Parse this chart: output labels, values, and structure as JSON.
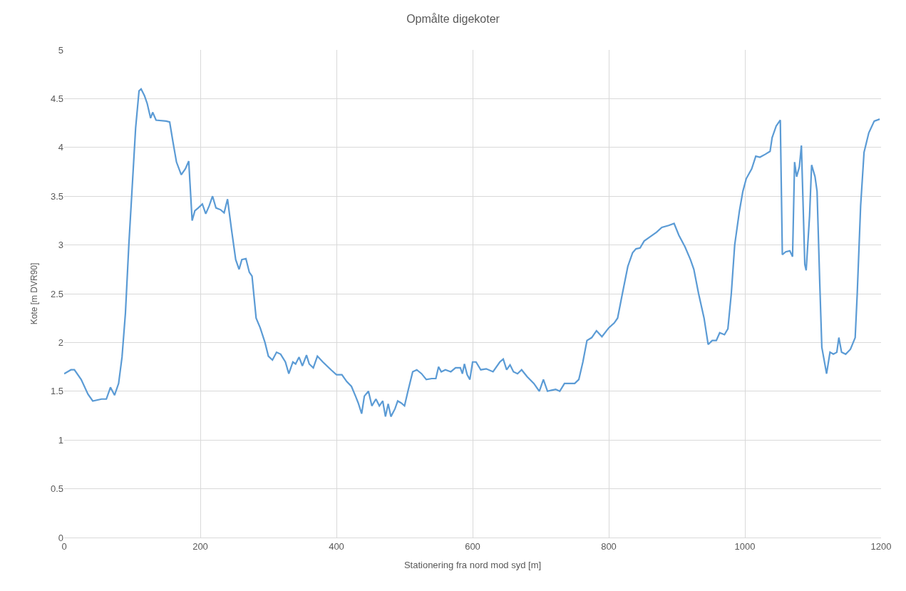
{
  "chart_data": {
    "type": "line",
    "title": "Opmålte digekoter",
    "xlabel": "Stationering fra nord mod syd [m]",
    "ylabel": "Kote [m DVR90]",
    "xlim": [
      0,
      1200
    ],
    "xticks": [
      0,
      200,
      400,
      600,
      800,
      1000,
      1200
    ],
    "ylim": [
      0,
      5
    ],
    "yticks": [
      0,
      0.5,
      1,
      1.5,
      2,
      2.5,
      3,
      3.5,
      4,
      4.5,
      5
    ],
    "grid": true,
    "marker": "none",
    "line_style": "solid",
    "series": [
      {
        "color": "#5b9bd5",
        "x": [
          0,
          10,
          15,
          25,
          35,
          42,
          55,
          62,
          68,
          74,
          80,
          85,
          90,
          95,
          100,
          105,
          110,
          113,
          118,
          122,
          127,
          130,
          135,
          150,
          155,
          160,
          165,
          172,
          178,
          183,
          188,
          192,
          197,
          203,
          208,
          213,
          218,
          223,
          230,
          235,
          240,
          246,
          252,
          257,
          261,
          267,
          272,
          276,
          282,
          288,
          295,
          300,
          306,
          312,
          318,
          325,
          330,
          336,
          340,
          345,
          350,
          356,
          360,
          366,
          372,
          380,
          392,
          400,
          408,
          415,
          422,
          428,
          432,
          437,
          441,
          447,
          452,
          458,
          463,
          468,
          472,
          476,
          480,
          486,
          490,
          495,
          500,
          505,
          512,
          518,
          525,
          532,
          540,
          546,
          550,
          554,
          560,
          568,
          575,
          582,
          585,
          588,
          592,
          596,
          600,
          605,
          612,
          620,
          630,
          640,
          645,
          650,
          655,
          660,
          666,
          672,
          680,
          690,
          698,
          704,
          710,
          716,
          722,
          728,
          735,
          742,
          750,
          756,
          762,
          768,
          775,
          782,
          790,
          800,
          808,
          813,
          820,
          828,
          835,
          840,
          846,
          852,
          860,
          870,
          878,
          888,
          896,
          903,
          912,
          920,
          925,
          932,
          940,
          946,
          952,
          958,
          963,
          970,
          975,
          980,
          985,
          992,
          997,
          1002,
          1010,
          1016,
          1022,
          1030,
          1037,
          1040,
          1046,
          1052,
          1055,
          1060,
          1066,
          1070,
          1073,
          1076,
          1080,
          1083,
          1088,
          1090,
          1095,
          1098,
          1103,
          1106,
          1110,
          1113,
          1120,
          1125,
          1130,
          1135,
          1138,
          1142,
          1148,
          1155,
          1162,
          1165,
          1170,
          1175,
          1182,
          1190,
          1198
        ],
        "values": [
          1.68,
          1.72,
          1.72,
          1.62,
          1.47,
          1.4,
          1.42,
          1.42,
          1.54,
          1.46,
          1.58,
          1.85,
          2.3,
          3.0,
          3.6,
          4.2,
          4.58,
          4.6,
          4.53,
          4.45,
          4.3,
          4.36,
          4.28,
          4.27,
          4.26,
          4.05,
          3.85,
          3.72,
          3.78,
          3.86,
          3.25,
          3.35,
          3.38,
          3.42,
          3.32,
          3.4,
          3.5,
          3.38,
          3.36,
          3.33,
          3.47,
          3.15,
          2.85,
          2.75,
          2.85,
          2.86,
          2.72,
          2.68,
          2.25,
          2.15,
          2.0,
          1.86,
          1.82,
          1.9,
          1.88,
          1.8,
          1.68,
          1.8,
          1.78,
          1.85,
          1.76,
          1.87,
          1.78,
          1.74,
          1.86,
          1.8,
          1.72,
          1.67,
          1.67,
          1.6,
          1.55,
          1.45,
          1.38,
          1.27,
          1.45,
          1.5,
          1.35,
          1.42,
          1.35,
          1.4,
          1.24,
          1.37,
          1.24,
          1.32,
          1.4,
          1.38,
          1.35,
          1.5,
          1.7,
          1.72,
          1.68,
          1.62,
          1.63,
          1.63,
          1.75,
          1.7,
          1.72,
          1.7,
          1.74,
          1.74,
          1.68,
          1.78,
          1.67,
          1.62,
          1.8,
          1.8,
          1.72,
          1.73,
          1.7,
          1.8,
          1.83,
          1.72,
          1.77,
          1.7,
          1.68,
          1.72,
          1.65,
          1.58,
          1.5,
          1.62,
          1.5,
          1.51,
          1.52,
          1.5,
          1.58,
          1.58,
          1.58,
          1.62,
          1.8,
          2.02,
          2.05,
          2.12,
          2.06,
          2.15,
          2.2,
          2.25,
          2.5,
          2.78,
          2.92,
          2.96,
          2.97,
          3.04,
          3.08,
          3.13,
          3.18,
          3.2,
          3.22,
          3.1,
          2.98,
          2.85,
          2.75,
          2.5,
          2.25,
          1.98,
          2.02,
          2.02,
          2.1,
          2.08,
          2.14,
          2.5,
          3.0,
          3.35,
          3.55,
          3.68,
          3.78,
          3.91,
          3.9,
          3.93,
          3.96,
          4.1,
          4.22,
          4.28,
          2.9,
          2.93,
          2.94,
          2.88,
          3.85,
          3.7,
          3.8,
          4.02,
          2.8,
          2.74,
          3.3,
          3.82,
          3.7,
          3.55,
          2.6,
          1.95,
          1.68,
          1.9,
          1.88,
          1.9,
          2.05,
          1.9,
          1.88,
          1.93,
          2.05,
          2.5,
          3.4,
          3.95,
          4.15,
          4.27,
          4.29
        ]
      }
    ]
  }
}
